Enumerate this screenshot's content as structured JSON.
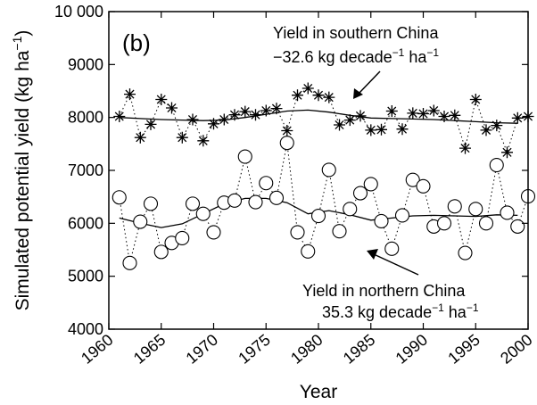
{
  "chart_data": {
    "type": "line",
    "panel_label": "(b)",
    "xlabel": "Year",
    "ylabel_main": "Simulated potential yield (kg ha",
    "ylabel_sup": "−1",
    "ylabel_close": ")",
    "xlim": [
      1960,
      2000
    ],
    "ylim": [
      4000,
      10000
    ],
    "xticks": [
      1960,
      1965,
      1970,
      1975,
      1980,
      1985,
      1990,
      1995,
      2000
    ],
    "yticks": [
      4000,
      5000,
      6000,
      7000,
      8000,
      9000,
      10000
    ],
    "xtick_labels": [
      "1960",
      "1965",
      "1970",
      "1975",
      "1980",
      "1985",
      "1990",
      "1995",
      "2000"
    ],
    "ytick_labels": [
      "4000",
      "5000",
      "6000",
      "7000",
      "8000",
      "9000",
      "10 000"
    ],
    "grid": false,
    "series": [
      {
        "marker": "star",
        "x": [
          1961,
          1962,
          1963,
          1964,
          1965,
          1966,
          1967,
          1968,
          1969,
          1970,
          1971,
          1972,
          1973,
          1974,
          1975,
          1976,
          1977,
          1978,
          1979,
          1980,
          1981,
          1982,
          1983,
          1984,
          1985,
          1986,
          1987,
          1988,
          1989,
          1990,
          1991,
          1992,
          1993,
          1994,
          1995,
          1996,
          1997,
          1998,
          1999,
          2000
        ],
        "values": [
          8020,
          8440,
          7620,
          7870,
          8340,
          8180,
          7620,
          7960,
          7560,
          7880,
          7960,
          8050,
          8110,
          8050,
          8130,
          8170,
          7750,
          8420,
          8550,
          8420,
          8380,
          7860,
          7950,
          8030,
          7760,
          7770,
          8120,
          7780,
          8080,
          8070,
          8130,
          8020,
          8040,
          7420,
          8340,
          7760,
          7850,
          7340,
          7990,
          8020
        ]
      },
      {
        "marker": "star-trend",
        "x": [
          1961,
          1963,
          1965,
          1967,
          1969,
          1971,
          1973,
          1975,
          1977,
          1979,
          1981,
          1983,
          1985,
          1987,
          1989,
          1991,
          1993,
          1995,
          1997,
          1999
        ],
        "values": [
          8000,
          7980,
          7960,
          7950,
          7940,
          7950,
          8000,
          8060,
          8120,
          8140,
          8100,
          8040,
          7990,
          7980,
          7970,
          7960,
          7940,
          7920,
          7900,
          7890
        ]
      },
      {
        "marker": "circle",
        "x": [
          1961,
          1962,
          1963,
          1964,
          1965,
          1966,
          1967,
          1968,
          1969,
          1970,
          1971,
          1972,
          1973,
          1974,
          1975,
          1976,
          1977,
          1978,
          1979,
          1980,
          1981,
          1982,
          1983,
          1984,
          1985,
          1986,
          1987,
          1988,
          1989,
          1990,
          1991,
          1992,
          1993,
          1994,
          1995,
          1996,
          1997,
          1998,
          1999,
          2000
        ],
        "values": [
          6490,
          5250,
          6030,
          6370,
          5460,
          5630,
          5720,
          6370,
          6180,
          5830,
          6390,
          6430,
          7260,
          6400,
          6760,
          6480,
          7520,
          5830,
          5470,
          6140,
          7010,
          5850,
          6270,
          6570,
          6740,
          6040,
          5520,
          6150,
          6820,
          6700,
          5940,
          6000,
          6320,
          5440,
          6270,
          6000,
          7100,
          6200,
          5940,
          6510
        ]
      },
      {
        "marker": "circle-trend",
        "x": [
          1961,
          1963,
          1965,
          1967,
          1969,
          1971,
          1973,
          1975,
          1977,
          1979,
          1981,
          1983,
          1985,
          1987,
          1989,
          1991,
          1993,
          1995,
          1997,
          1999
        ],
        "values": [
          6100,
          6000,
          5920,
          5990,
          6180,
          6370,
          6470,
          6470,
          6390,
          6180,
          6240,
          6160,
          6060,
          6100,
          6140,
          6150,
          6140,
          6130,
          6160,
          6150
        ]
      }
    ],
    "annotations": [
      {
        "line1": "Yield in southern China",
        "line2_pre": "−32.6 kg decade",
        "line2_sup1": "−1",
        "line2_mid": " ha",
        "line2_sup2": "−1"
      },
      {
        "line1": "Yield in northern China",
        "line2_pre": "35.3 kg decade",
        "line2_sup1": "−1",
        "line2_mid": " ha",
        "line2_sup2": "−1"
      }
    ]
  }
}
